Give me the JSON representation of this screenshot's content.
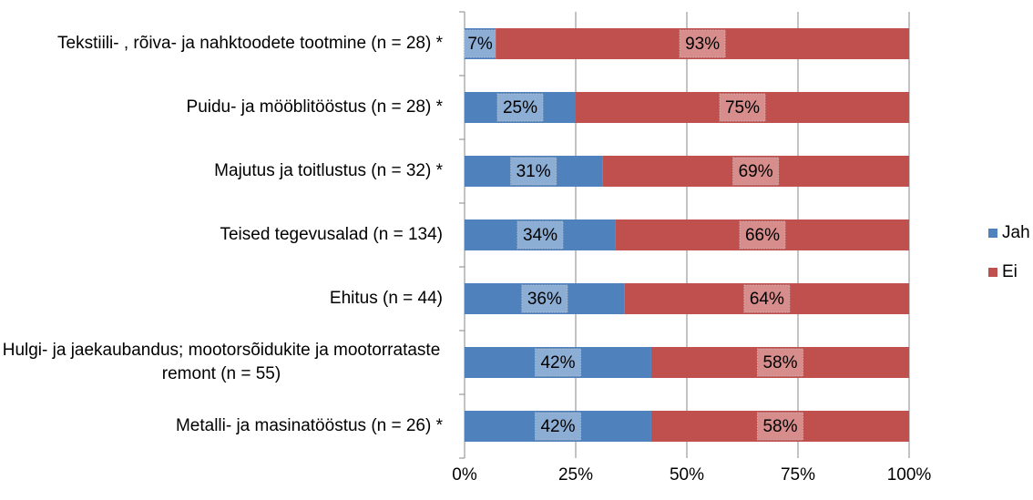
{
  "chart_data": {
    "type": "stacked_bar_horizontal",
    "categories": [
      "Tekstiili- , rõiva- ja nahktoodete tootmine (n = 28) *",
      "Puidu- ja mööblitööstus (n = 28) *",
      "Majutus ja toitlustus (n = 32) *",
      "Teised tegevusalad (n = 134)",
      "Ehitus (n = 44)",
      "Hulgi- ja jaekaubandus; mootorsõidukite ja mootorrataste remont (n = 55)",
      "Metalli- ja masinatööstus (n = 26) *"
    ],
    "series": [
      {
        "name": "Jah",
        "color": "#4f81bd",
        "values": [
          7,
          25,
          31,
          34,
          36,
          42,
          42
        ],
        "value_labels": [
          "7%",
          "25%",
          "31%",
          "34%",
          "36%",
          "42%",
          "42%"
        ]
      },
      {
        "name": "Ei",
        "color": "#c0504d",
        "values": [
          93,
          75,
          69,
          66,
          64,
          58,
          58
        ],
        "value_labels": [
          "93%",
          "75%",
          "69%",
          "66%",
          "64%",
          "58%",
          "58%"
        ]
      }
    ],
    "xlim": [
      0,
      100
    ],
    "xticks": [
      {
        "value": 0,
        "label": "0%"
      },
      {
        "value": 25,
        "label": "25%"
      },
      {
        "value": 50,
        "label": "50%"
      },
      {
        "value": 75,
        "label": "75%"
      },
      {
        "value": 100,
        "label": "100%"
      }
    ],
    "grid": true,
    "legend": "right"
  }
}
